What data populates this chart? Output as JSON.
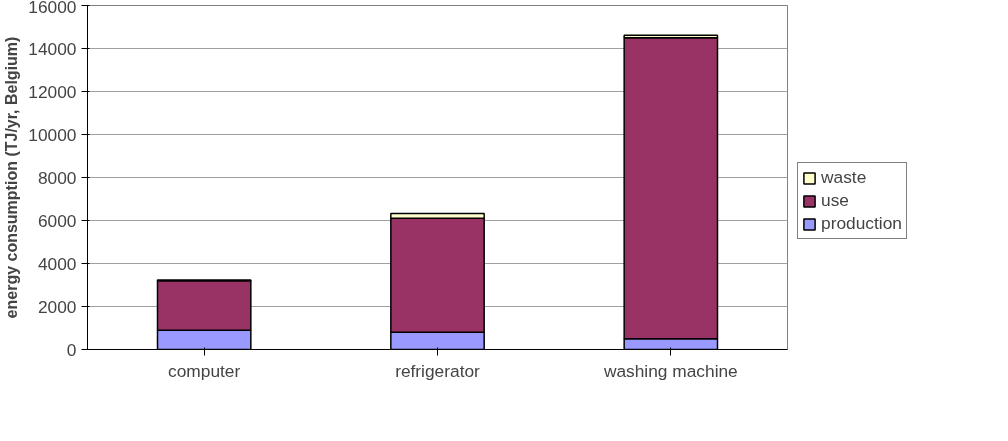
{
  "chart_data": {
    "type": "bar",
    "stacked": true,
    "ylabel": "energy consumption (TJ/yr, Belgium)",
    "categories": [
      "computer",
      "refrigerator",
      "washing machine"
    ],
    "series": [
      {
        "name": "production",
        "color": "#9999ff",
        "values": [
          900,
          800,
          500
        ]
      },
      {
        "name": "use",
        "color": "#993366",
        "values": [
          2300,
          5300,
          14000
        ]
      },
      {
        "name": "waste",
        "color": "#ffffcc",
        "values": [
          30,
          230,
          120
        ]
      }
    ],
    "ylim": [
      0,
      16000
    ],
    "yticks": [
      0,
      2000,
      4000,
      6000,
      8000,
      10000,
      12000,
      14000,
      16000
    ],
    "grid": "y",
    "legend": "right"
  }
}
